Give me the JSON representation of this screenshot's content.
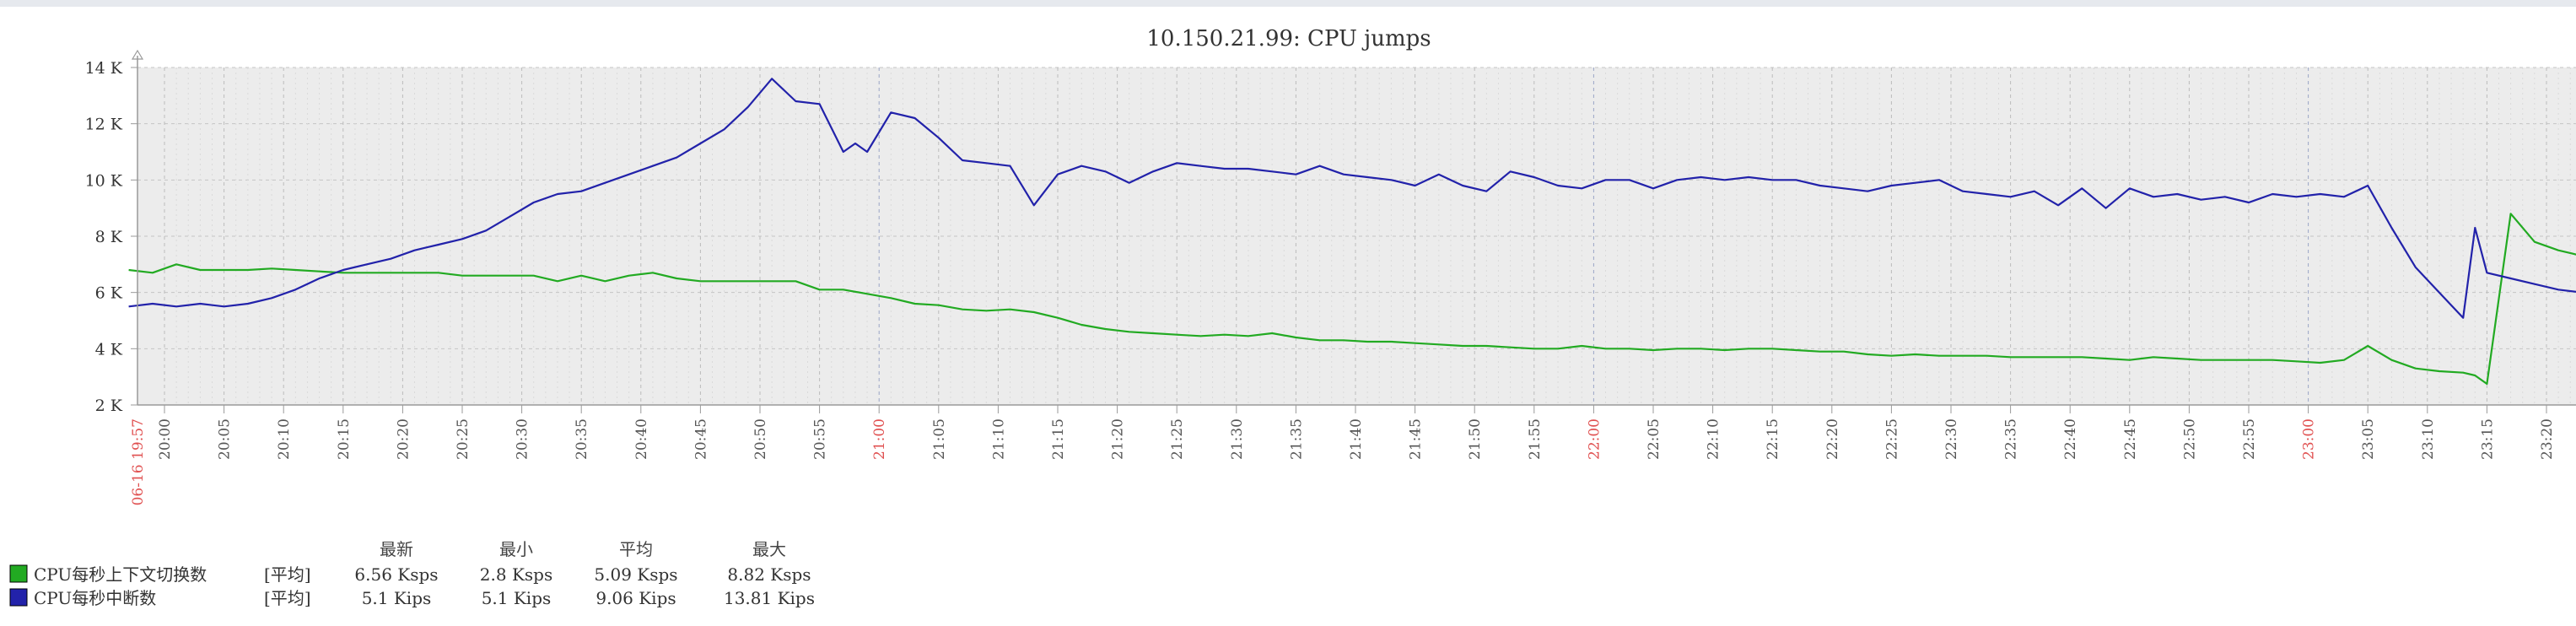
{
  "chart_data": {
    "type": "line",
    "title": "10.150.21.99: CPU jumps",
    "y_ticks": [
      "2 K",
      "4 K",
      "6 K",
      "8 K",
      "10 K",
      "12 K",
      "14 K"
    ],
    "ylim": [
      2000,
      14000
    ],
    "x_start_label": "06-16 19:57",
    "x_ticks": [
      "20:00",
      "20:05",
      "20:10",
      "20:15",
      "20:20",
      "20:25",
      "20:30",
      "20:35",
      "20:40",
      "20:45",
      "20:50",
      "20:55",
      "21:00",
      "21:05",
      "21:10",
      "21:15",
      "21:20",
      "21:25",
      "21:30",
      "21:35",
      "21:40",
      "21:45",
      "21:50",
      "21:55",
      "22:00",
      "22:05",
      "22:10",
      "22:15",
      "22:20",
      "22:25",
      "22:30",
      "22:35",
      "22:40",
      "22:45",
      "22:50",
      "22:55",
      "23:00",
      "23:05",
      "23:10",
      "23:15",
      "23:20"
    ],
    "major_ticks": [
      "21:00",
      "22:00",
      "23:00"
    ],
    "series": [
      {
        "name": "CPU每秒上下文切换数",
        "color": "#22aa22",
        "x_minutes": [
          0,
          2,
          4,
          6,
          8,
          10,
          12,
          14,
          16,
          18,
          20,
          22,
          24,
          26,
          28,
          30,
          32,
          34,
          36,
          38,
          40,
          42,
          44,
          46,
          48,
          50,
          52,
          54,
          56,
          58,
          60,
          62,
          64,
          66,
          68,
          70,
          72,
          74,
          76,
          78,
          80,
          82,
          84,
          86,
          88,
          90,
          92,
          94,
          96,
          98,
          100,
          102,
          104,
          106,
          108,
          110,
          112,
          114,
          116,
          118,
          120,
          122,
          124,
          126,
          128,
          130,
          132,
          134,
          136,
          138,
          140,
          142,
          144,
          146,
          148,
          150,
          152,
          154,
          156,
          158,
          160,
          162,
          164,
          166,
          168,
          170,
          172,
          174,
          176,
          178,
          180,
          182,
          184,
          186,
          188,
          190,
          192,
          194,
          196,
          197,
          198,
          200,
          202,
          204,
          206,
          207,
          208,
          209,
          212
        ],
        "values": [
          6800,
          6700,
          7000,
          6800,
          6800,
          6800,
          6850,
          6800,
          6750,
          6700,
          6700,
          6700,
          6700,
          6700,
          6600,
          6600,
          6600,
          6600,
          6400,
          6600,
          6400,
          6600,
          6700,
          6500,
          6400,
          6400,
          6400,
          6400,
          6400,
          6100,
          6100,
          5950,
          5800,
          5600,
          5550,
          5400,
          5350,
          5400,
          5300,
          5100,
          4850,
          4700,
          4600,
          4550,
          4500,
          4450,
          4500,
          4450,
          4550,
          4400,
          4300,
          4300,
          4250,
          4250,
          4200,
          4150,
          4100,
          4100,
          4050,
          4000,
          4000,
          4100,
          4000,
          4000,
          3950,
          4000,
          4000,
          3950,
          4000,
          4000,
          3950,
          3900,
          3900,
          3800,
          3750,
          3800,
          3750,
          3750,
          3750,
          3700,
          3700,
          3700,
          3700,
          3650,
          3600,
          3700,
          3650,
          3600,
          3600,
          3600,
          3600,
          3550,
          3500,
          3600,
          4100,
          3600,
          3300,
          3200,
          3150,
          3050,
          2750,
          8800,
          7800,
          7500,
          7300,
          7200,
          7150,
          7100,
          6560
        ]
      },
      {
        "name": "CPU每秒中断数",
        "color": "#2222aa",
        "x_minutes": [
          0,
          2,
          4,
          6,
          8,
          10,
          12,
          14,
          16,
          18,
          20,
          22,
          24,
          26,
          28,
          30,
          32,
          34,
          36,
          38,
          40,
          42,
          44,
          46,
          48,
          50,
          52,
          54,
          56,
          58,
          60,
          61,
          62,
          64,
          66,
          68,
          70,
          72,
          74,
          76,
          78,
          80,
          82,
          84,
          86,
          88,
          90,
          92,
          94,
          96,
          98,
          100,
          102,
          104,
          106,
          108,
          110,
          112,
          114,
          116,
          118,
          120,
          122,
          124,
          126,
          128,
          130,
          132,
          134,
          136,
          138,
          140,
          142,
          144,
          146,
          148,
          150,
          152,
          154,
          156,
          158,
          160,
          162,
          164,
          166,
          168,
          170,
          172,
          174,
          176,
          178,
          180,
          182,
          184,
          186,
          188,
          190,
          192,
          194,
          196,
          197,
          198,
          200,
          202,
          204,
          206,
          208,
          210,
          212
        ],
        "values": [
          5500,
          5600,
          5500,
          5600,
          5500,
          5600,
          5800,
          6100,
          6500,
          6800,
          7000,
          7200,
          7500,
          7700,
          7900,
          8200,
          8700,
          9200,
          9500,
          9600,
          9900,
          10200,
          10500,
          10800,
          11300,
          11800,
          12600,
          13600,
          12800,
          12700,
          11000,
          11300,
          11000,
          12400,
          12200,
          11500,
          10700,
          10600,
          10500,
          9100,
          10200,
          10500,
          10300,
          9900,
          10300,
          10600,
          10500,
          10400,
          10400,
          10300,
          10200,
          10500,
          10200,
          10100,
          10000,
          9800,
          10200,
          9800,
          9600,
          10300,
          10100,
          9800,
          9700,
          10000,
          10000,
          9700,
          10000,
          10100,
          10000,
          10100,
          10000,
          10000,
          9800,
          9700,
          9600,
          9800,
          9900,
          10000,
          9600,
          9500,
          9400,
          9600,
          9100,
          9700,
          9000,
          9700,
          9400,
          9500,
          9300,
          9400,
          9200,
          9500,
          9400,
          9500,
          9400,
          9800,
          8300,
          6900,
          6000,
          5100,
          8300,
          6700,
          6500,
          6300,
          6100,
          6000,
          5800,
          5700,
          5100
        ]
      }
    ],
    "legend_headers": [
      "最新",
      "最小",
      "平均",
      "最大"
    ],
    "legend": [
      {
        "name": "CPU每秒上下文切换数",
        "func": "[平均]",
        "latest": "6.56 Ksps",
        "min": "2.8 Ksps",
        "avg": "5.09 Ksps",
        "max": "8.82 Ksps",
        "color": "#22aa22"
      },
      {
        "name": "CPU每秒中断数",
        "func": "[平均]",
        "latest": "5.1 Kips",
        "min": "5.1 Kips",
        "avg": "9.06 Kips",
        "max": "13.81 Kips",
        "color": "#2222aa"
      }
    ]
  }
}
